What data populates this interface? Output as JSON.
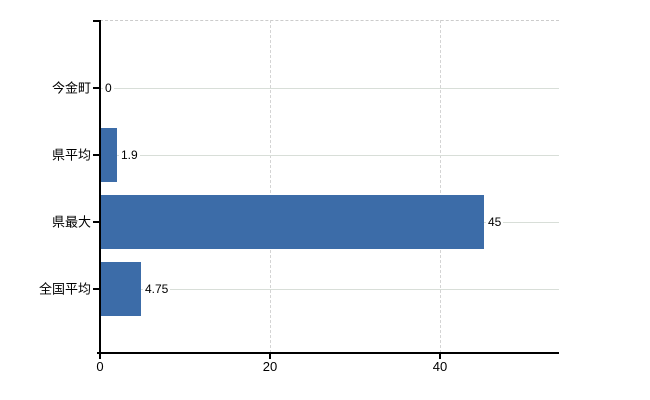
{
  "chart_data": {
    "type": "bar",
    "orientation": "horizontal",
    "title": "",
    "xlabel": "",
    "ylabel": "",
    "categories": [
      "今金町",
      "県平均",
      "県最大",
      "全国平均"
    ],
    "values": [
      0,
      1.9,
      45,
      4.75
    ],
    "value_labels": [
      "0",
      "1.9",
      "45",
      "4.75"
    ],
    "x_ticks": [
      0,
      20,
      40
    ],
    "x_tick_labels": [
      "0",
      "20",
      "40"
    ],
    "xlim": [
      0,
      54
    ],
    "grid": true,
    "legend": "none",
    "colors": {
      "bar": "#3c6ca8",
      "h_gridline": "#d8ded8",
      "v_gridline": "#d4d4d4",
      "plot_top_border": "#cccccc",
      "axis": "#000000",
      "text": "#000000",
      "background": "#ffffff"
    }
  }
}
